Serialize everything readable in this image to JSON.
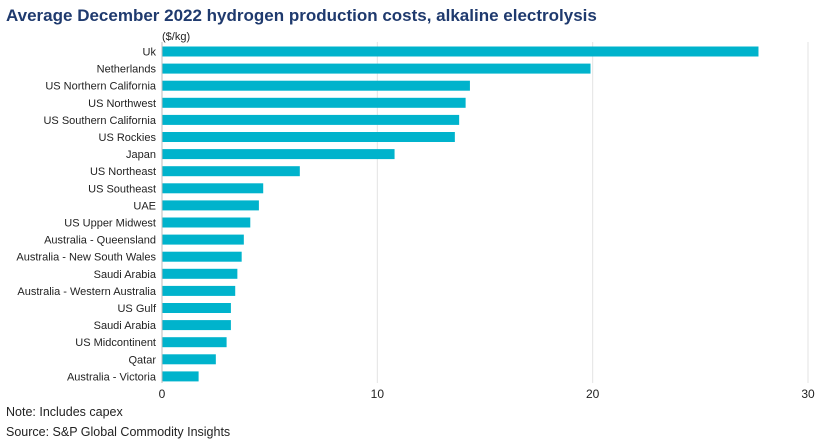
{
  "chart_data": {
    "type": "bar",
    "orientation": "horizontal",
    "title": "Average December 2022 hydrogen production costs, alkaline electrolysis",
    "unit_label": "($/kg)",
    "xlim": [
      0,
      30
    ],
    "x_ticks": [
      0,
      10,
      20,
      30
    ],
    "grid": true,
    "bar_color": "#00b3cc",
    "categories": [
      "Uk",
      "Netherlands",
      "US Northern California",
      "US Northwest",
      "US Southern California",
      "US Rockies",
      "Japan",
      "US Northeast",
      "US Southeast",
      "UAE",
      "US Upper Midwest",
      "Australia - Queensland",
      "Australia - New South Wales",
      "Saudi Arabia",
      "Australia - Western Australia",
      "US Gulf",
      "Saudi Arabia",
      "US Midcontinent",
      "Qatar",
      "Australia - Victoria"
    ],
    "values": [
      27.7,
      19.9,
      14.3,
      14.1,
      13.8,
      13.6,
      10.8,
      6.4,
      4.7,
      4.5,
      4.1,
      3.8,
      3.7,
      3.5,
      3.4,
      3.2,
      3.2,
      3.0,
      2.5,
      1.7
    ]
  },
  "notes": {
    "note": "Note: Includes capex",
    "source": "Source: S&P Global Commodity Insights"
  }
}
